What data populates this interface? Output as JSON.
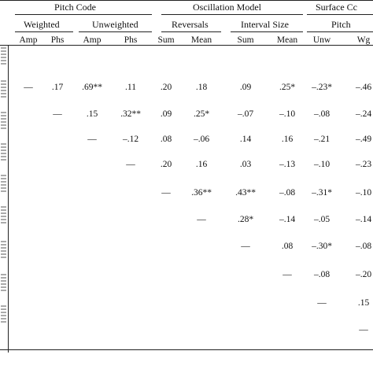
{
  "header": {
    "groups": [
      "Pitch Code",
      "Oscillation Model",
      "Surface Cc"
    ],
    "subgroups": [
      "Weighted",
      "Unweighted",
      "Reversals",
      "Interval Size",
      "Pitch"
    ],
    "columns": [
      "Amp",
      "Phs",
      "Amp",
      "Phs",
      "Sum",
      "Mean",
      "Sum",
      "Mean",
      "Unw",
      "Wg"
    ]
  },
  "rows": [
    [
      "—",
      ".17",
      ".69**",
      ".11",
      ".20",
      ".18",
      ".09",
      ".25*",
      "–.23*",
      "–.46"
    ],
    [
      "",
      "—",
      ".15",
      ".32**",
      ".09",
      ".25*",
      "–.07",
      "–.10",
      "–.08",
      "–.24"
    ],
    [
      "",
      "",
      "—",
      "–.12",
      ".08",
      "–.06",
      ".14",
      ".16",
      "–.21",
      "–.49"
    ],
    [
      "",
      "",
      "",
      "—",
      ".20",
      ".16",
      ".03",
      "–.13",
      "–.10",
      "–.23"
    ],
    [
      "",
      "",
      "",
      "",
      "—",
      ".36**",
      ".43**",
      "–.08",
      "–.31*",
      "–.10"
    ],
    [
      "",
      "",
      "",
      "",
      "",
      "—",
      ".28*",
      "–.14",
      "–.05",
      "–.14"
    ],
    [
      "",
      "",
      "",
      "",
      "",
      "",
      "—",
      ".08",
      "–.30*",
      "–.08"
    ],
    [
      "",
      "",
      "",
      "",
      "",
      "",
      "",
      "—",
      "–.08",
      "–.20"
    ],
    [
      "",
      "",
      "",
      "",
      "",
      "",
      "",
      "",
      "—",
      ".15"
    ],
    [
      "",
      "",
      "",
      "",
      "",
      "",
      "",
      "",
      "",
      "—"
    ]
  ]
}
